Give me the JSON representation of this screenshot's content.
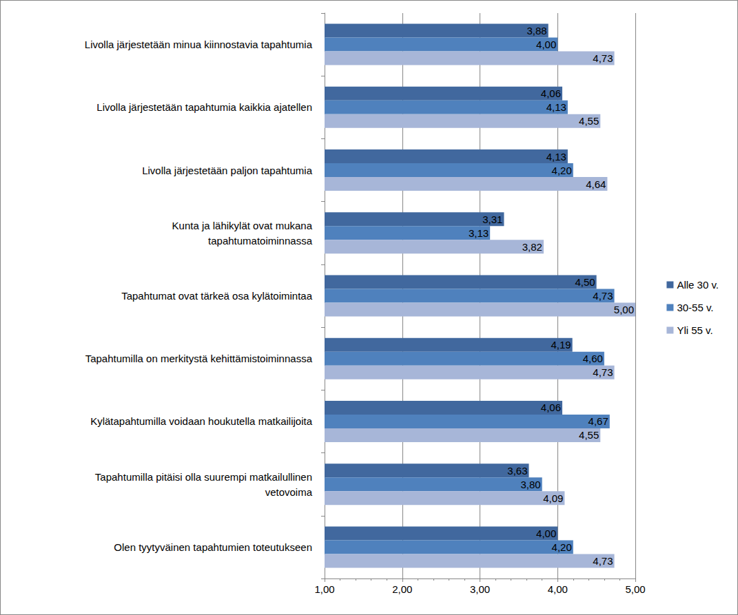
{
  "chart_data": {
    "type": "bar",
    "orientation": "horizontal",
    "categories": [
      "Livolla järjestetään minua kiinnostavia tapahtumia",
      "Livolla järjestetään tapahtumia kaikkia ajatellen",
      "Livolla järjestetään paljon tapahtumia",
      "Kunta ja lähikylät ovat mukana\ntapahtumatoiminnassa",
      "Tapahtumat ovat tärkeä osa kylätoimintaa",
      "Tapahtumilla on merkitystä kehittämistoiminnassa",
      "Kylätapahtumilla voidaan houkutella matkailijoita",
      "Tapahtumilla pitäisi olla suurempi matkailullinen\nvetovoima",
      "Olen tyytyväinen tapahtumien toteutukseen"
    ],
    "series": [
      {
        "name": "Alle 30 v.",
        "color": "#41689e",
        "values": [
          3.88,
          4.06,
          4.13,
          3.31,
          4.5,
          4.19,
          4.06,
          3.63,
          4.0
        ],
        "value_labels": [
          "3,88",
          "4,06",
          "4,13",
          "3,31",
          "4,50",
          "4,19",
          "4,06",
          "3,63",
          "4,00"
        ]
      },
      {
        "name": "30-55 v.",
        "color": "#4f81bd",
        "values": [
          4.0,
          4.13,
          4.2,
          3.13,
          4.73,
          4.6,
          4.67,
          3.8,
          4.2
        ],
        "value_labels": [
          "4,00",
          "4,13",
          "4,20",
          "3,13",
          "4,73",
          "4,60",
          "4,67",
          "3,80",
          "4,20"
        ]
      },
      {
        "name": "Yli 55 v.",
        "color": "#a7b6d8",
        "values": [
          4.73,
          4.55,
          4.64,
          3.82,
          5.0,
          4.73,
          4.55,
          4.09,
          4.73
        ],
        "value_labels": [
          "4,73",
          "4,55",
          "4,64",
          "3,82",
          "5,00",
          "4,73",
          "4,55",
          "4,09",
          "4,73"
        ]
      }
    ],
    "xlim": [
      1,
      5
    ],
    "xticks": [
      {
        "value": 1,
        "label": "1,00"
      },
      {
        "value": 2,
        "label": "2,00"
      },
      {
        "value": 3,
        "label": "3,00"
      },
      {
        "value": 4,
        "label": "4,00"
      },
      {
        "value": 5,
        "label": "5,00"
      }
    ],
    "grid": true,
    "legend": "right",
    "data_labels": true
  }
}
